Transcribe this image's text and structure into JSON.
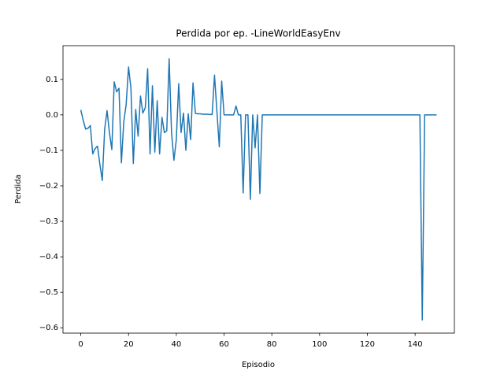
{
  "chart_data": {
    "type": "line",
    "title": "Perdida por ep. -LineWorldEasyEnv",
    "x_label": "Episodio",
    "y_label": "Perdida",
    "color": "#1f77b4",
    "x": [
      0,
      1,
      2,
      3,
      4,
      5,
      6,
      7,
      8,
      9,
      10,
      11,
      12,
      13,
      14,
      15,
      16,
      17,
      18,
      19,
      20,
      21,
      22,
      23,
      24,
      25,
      26,
      27,
      28,
      29,
      30,
      31,
      32,
      33,
      34,
      35,
      36,
      37,
      38,
      39,
      40,
      41,
      42,
      43,
      44,
      45,
      46,
      47,
      48,
      49,
      50,
      51,
      52,
      53,
      54,
      55,
      56,
      57,
      58,
      59,
      60,
      61,
      62,
      63,
      64,
      65,
      66,
      67,
      68,
      69,
      70,
      71,
      72,
      73,
      74,
      75,
      76,
      77,
      78,
      79,
      80,
      81,
      82,
      83,
      84,
      85,
      86,
      87,
      88,
      89,
      90,
      91,
      92,
      93,
      94,
      95,
      96,
      97,
      98,
      99,
      100,
      101,
      102,
      103,
      104,
      105,
      106,
      107,
      108,
      109,
      110,
      111,
      112,
      113,
      114,
      115,
      116,
      117,
      118,
      119,
      120,
      121,
      122,
      123,
      124,
      125,
      126,
      127,
      128,
      129,
      130,
      131,
      132,
      133,
      134,
      135,
      136,
      137,
      138,
      139,
      140,
      141,
      142,
      143,
      144,
      145,
      146,
      147,
      148,
      149
    ],
    "values": [
      0.014,
      -0.015,
      -0.04,
      -0.038,
      -0.03,
      -0.11,
      -0.095,
      -0.088,
      -0.14,
      -0.185,
      -0.04,
      0.012,
      -0.05,
      -0.098,
      0.093,
      0.065,
      0.075,
      -0.135,
      -0.02,
      0.03,
      0.135,
      0.075,
      -0.137,
      0.015,
      -0.06,
      0.053,
      0.005,
      0.02,
      0.13,
      -0.11,
      0.082,
      -0.105,
      0.04,
      -0.11,
      -0.007,
      -0.05,
      -0.045,
      0.158,
      -0.05,
      -0.128,
      -0.07,
      0.088,
      -0.05,
      0.005,
      -0.1,
      0.003,
      -0.07,
      0.09,
      0.004,
      0.003,
      0.003,
      0.002,
      0.002,
      0.002,
      0.001,
      0.001,
      0.112,
      0.01,
      -0.09,
      0.095,
      0,
      0,
      0,
      0,
      0,
      0.025,
      0,
      0,
      -0.22,
      0,
      0,
      -0.238,
      0,
      -0.093,
      0,
      -0.222,
      0,
      0,
      0,
      0,
      0,
      0,
      0,
      0,
      0,
      0,
      0,
      0,
      0,
      0,
      0,
      0,
      0,
      0,
      0,
      0,
      0,
      0,
      0,
      0,
      0,
      0,
      0,
      0,
      0,
      0,
      0,
      0,
      0,
      0,
      0,
      0,
      0,
      0,
      0,
      0,
      0,
      0,
      0,
      0,
      0,
      0,
      0,
      0,
      0,
      0,
      0,
      0,
      0,
      0,
      0,
      0,
      0,
      0,
      0,
      0,
      0,
      0,
      0,
      0,
      0,
      0,
      0,
      -0.578,
      0,
      0,
      0,
      0,
      0,
      0
    ],
    "xlim": [
      -7.45,
      156.45
    ],
    "ylim": [
      -0.615,
      0.195
    ],
    "xticks": [
      0,
      20,
      40,
      60,
      80,
      100,
      120,
      140
    ],
    "yticks": [
      {
        "value": -0.6,
        "label": "−0.6"
      },
      {
        "value": -0.5,
        "label": "−0.5"
      },
      {
        "value": -0.4,
        "label": "−0.4"
      },
      {
        "value": -0.3,
        "label": "−0.3"
      },
      {
        "value": -0.2,
        "label": "−0.2"
      },
      {
        "value": -0.1,
        "label": "−0.1"
      },
      {
        "value": 0,
        "label": "0.0"
      },
      0.1
    ],
    "grid": false
  }
}
